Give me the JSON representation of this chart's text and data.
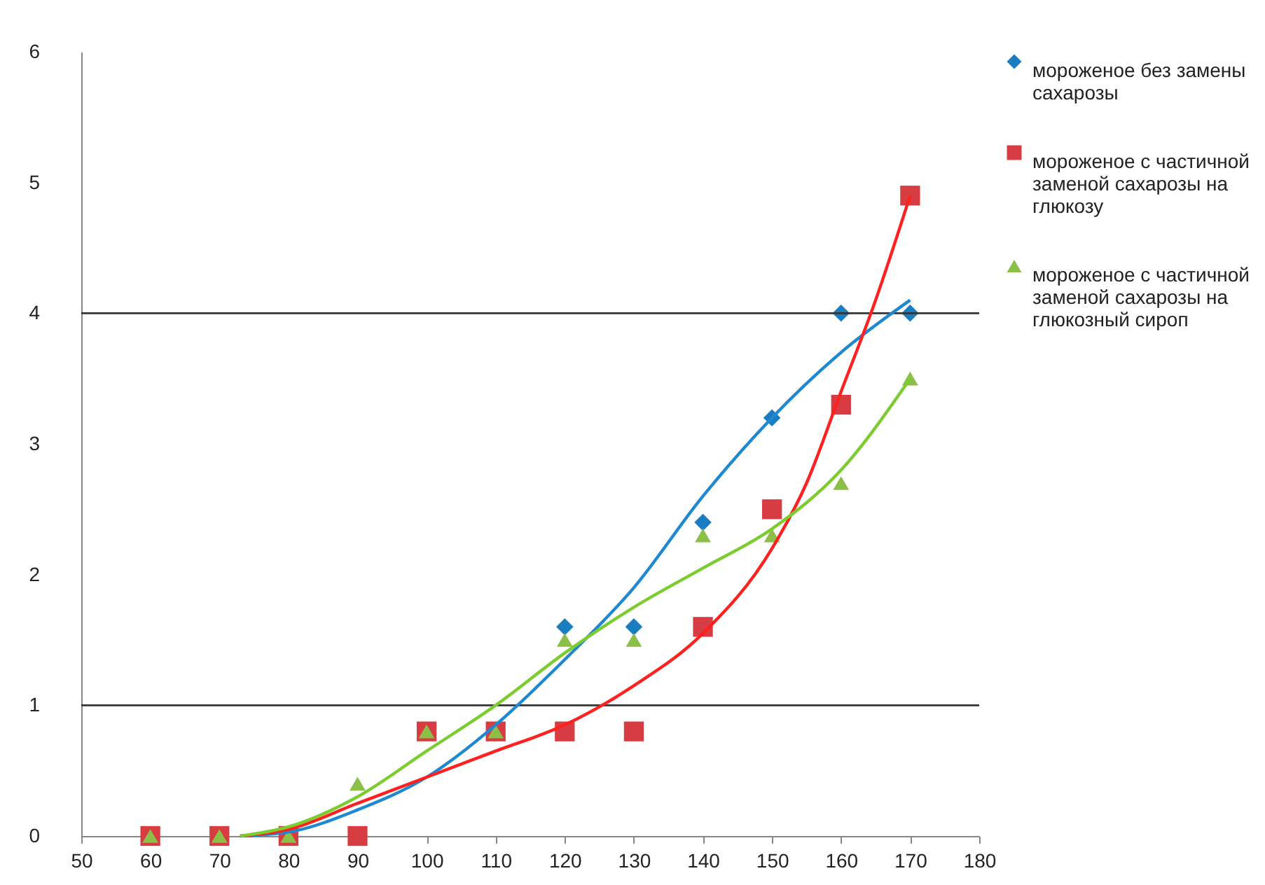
{
  "chart_data": {
    "type": "scatter",
    "xlim": [
      50,
      180
    ],
    "xticks": [
      50,
      60,
      70,
      80,
      90,
      100,
      110,
      120,
      130,
      140,
      150,
      160,
      170,
      180
    ],
    "ylim": [
      0,
      6
    ],
    "yticks": [
      0,
      1,
      2,
      3,
      4,
      5,
      6
    ],
    "legend": "right",
    "x": [
      60,
      70,
      80,
      90,
      100,
      110,
      120,
      130,
      140,
      150,
      160,
      170
    ],
    "series": [
      {
        "name": "мороженое без замены сахарозы",
        "marker": "diamond",
        "color": "#1a7cc1",
        "values": [
          null,
          null,
          null,
          null,
          null,
          null,
          1.6,
          1.6,
          2.4,
          3.2,
          4,
          4
        ]
      },
      {
        "name": "мороженое с частичной заменой сахарозы на глюкозу",
        "marker": "square",
        "color": "#d63c41",
        "values": [
          0,
          0,
          0,
          0,
          0.8,
          0.8,
          0.8,
          0.8,
          1.6,
          2.5,
          3.3,
          4.9
        ]
      },
      {
        "name": "мороженое с частичной заменой сахарозы на глюкозный сироп",
        "marker": "triangle",
        "color": "#8cbf48",
        "values": [
          0,
          0,
          0,
          0.4,
          0.8,
          0.8,
          1.5,
          1.5,
          2.3,
          2.3,
          2.7,
          3.5
        ]
      },
      {
        "type": "line",
        "color": "#1e88d0",
        "x": [
          73,
          80,
          90,
          100,
          110,
          120,
          130,
          140,
          150,
          160,
          170
        ],
        "values": [
          0,
          0.03,
          0.2,
          0.45,
          0.85,
          1.35,
          1.9,
          2.6,
          3.2,
          3.7,
          4.1
        ]
      },
      {
        "type": "line",
        "color": "#ff2020",
        "x": [
          73,
          80,
          90,
          100,
          110,
          120,
          130,
          140,
          150,
          155,
          160,
          165,
          170
        ],
        "values": [
          0,
          0.05,
          0.25,
          0.45,
          0.65,
          0.85,
          1.15,
          1.55,
          2.2,
          2.7,
          3.4,
          4.1,
          4.9
        ]
      },
      {
        "type": "line",
        "color": "#7ccc30",
        "x": [
          73,
          80,
          90,
          100,
          110,
          120,
          130,
          140,
          150,
          160,
          170
        ],
        "values": [
          0,
          0.07,
          0.3,
          0.65,
          1.0,
          1.4,
          1.75,
          2.05,
          2.35,
          2.8,
          3.5
        ]
      }
    ],
    "ref_lines": [
      {
        "axis": "y",
        "value": 1
      },
      {
        "axis": "y",
        "value": 4
      }
    ]
  }
}
